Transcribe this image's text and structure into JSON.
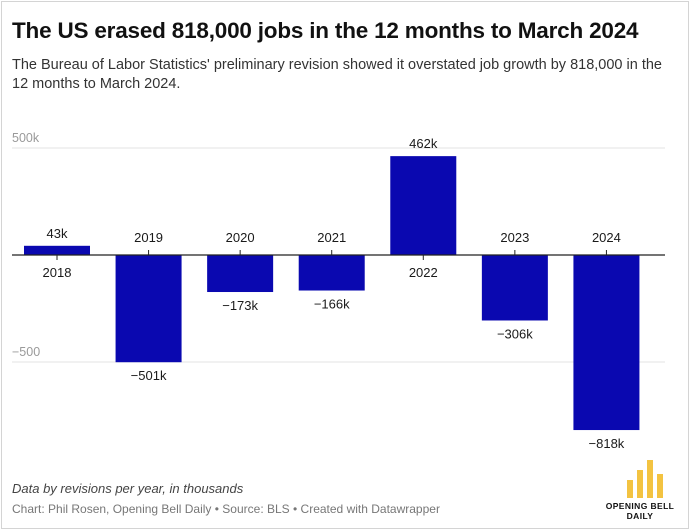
{
  "header": {
    "title": "The US erased 818,000 jobs in the 12 months to March 2024",
    "subtitle": "The Bureau of Labor Statistics' preliminary revision showed it overstated job growth by 818,000 in the 12 months to March 2024."
  },
  "chart_data": {
    "type": "bar",
    "categories": [
      "2018",
      "2019",
      "2020",
      "2021",
      "2022",
      "2023",
      "2024"
    ],
    "values": [
      43,
      -501,
      -173,
      -166,
      462,
      -306,
      -818
    ],
    "data_labels": [
      "43k",
      "−501k",
      "−173k",
      "−166k",
      "462k",
      "−306k",
      "−818k"
    ],
    "title": "The US erased 818,000 jobs in the 12 months to March 2024",
    "xlabel": "",
    "ylabel": "",
    "ylim": [
      -818,
      500
    ],
    "yticks": [
      {
        "value": 500,
        "label": "500k"
      },
      {
        "value": -500,
        "label": "−500"
      }
    ],
    "grid": true,
    "bar_color": "#0a08b0",
    "gridline_color": "#e3e3e3",
    "zero_line_color": "#222222"
  },
  "footer": {
    "note": "Data by revisions per year, in thousands",
    "credit": "Chart: Phil Rosen, Opening Bell Daily • Source: BLS • Created with Datawrapper"
  },
  "logo": {
    "line1": "OPENING BELL",
    "line2": "DAILY",
    "color": "#f3c341"
  }
}
